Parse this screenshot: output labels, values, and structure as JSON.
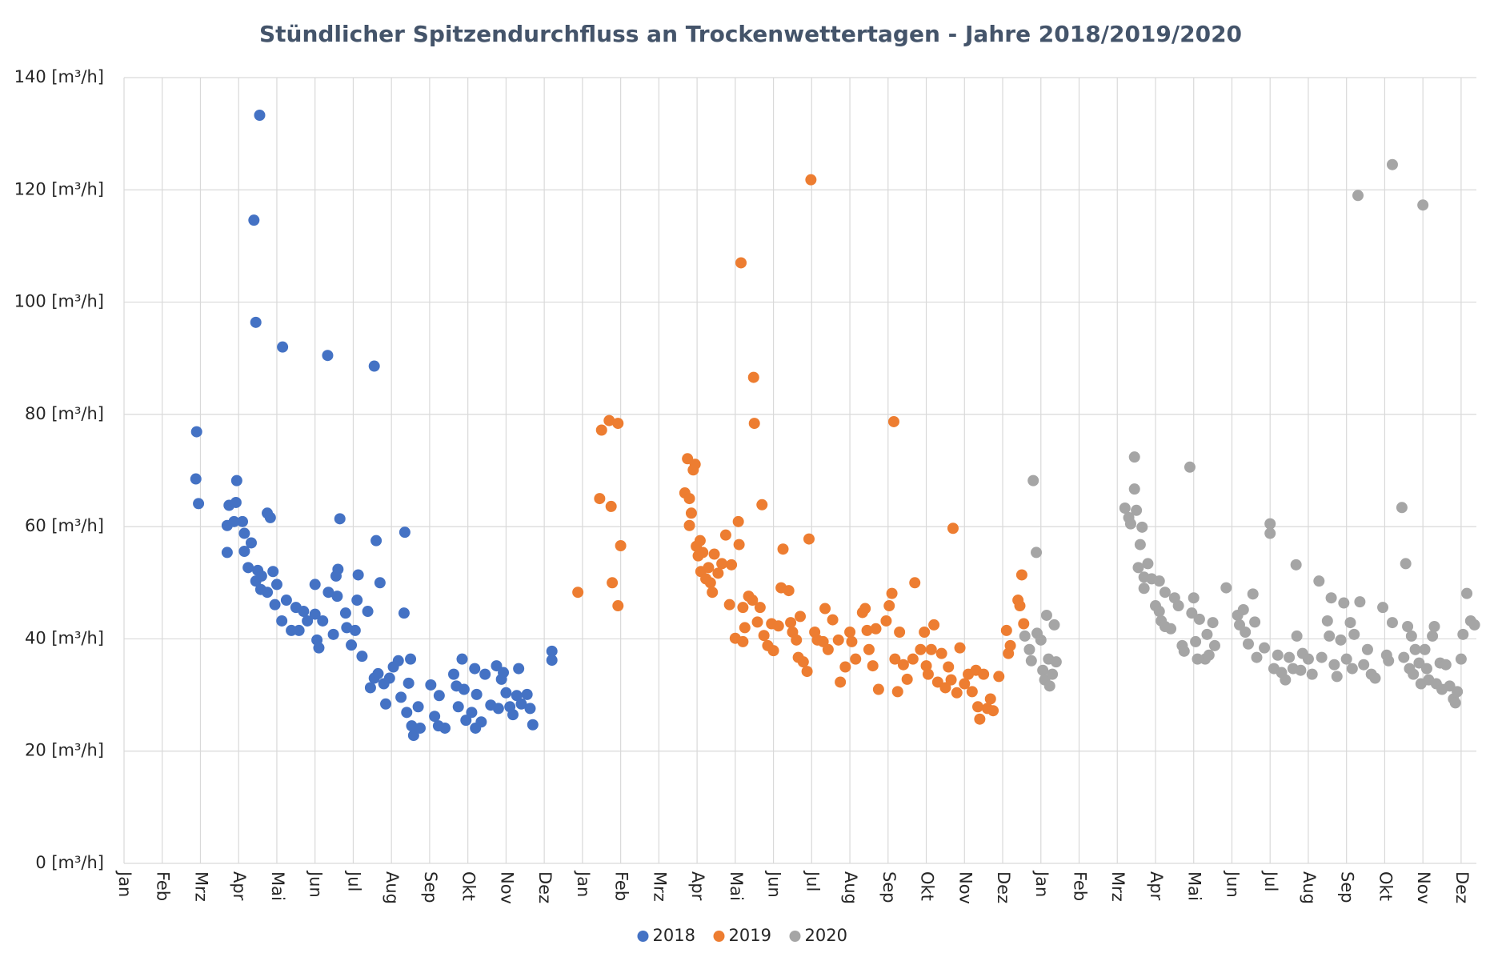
{
  "chart_data": {
    "type": "scatter",
    "title": "Stündlicher Spitzendurchfluss an Trockenwettertagen - Jahre 2018/2019/2020",
    "xlim": [
      0,
      35.4
    ],
    "xticks": [
      {
        "value": 0,
        "label": "Jan"
      },
      {
        "value": 1,
        "label": "Feb"
      },
      {
        "value": 2,
        "label": "Mrz"
      },
      {
        "value": 3,
        "label": "Apr"
      },
      {
        "value": 4,
        "label": "Mai"
      },
      {
        "value": 5,
        "label": "Jun"
      },
      {
        "value": 6,
        "label": "Jul"
      },
      {
        "value": 7,
        "label": "Aug"
      },
      {
        "value": 8,
        "label": "Sep"
      },
      {
        "value": 9,
        "label": "Okt"
      },
      {
        "value": 10,
        "label": "Nov"
      },
      {
        "value": 11,
        "label": "Dez"
      },
      {
        "value": 12,
        "label": "Jan"
      },
      {
        "value": 13,
        "label": "Feb"
      },
      {
        "value": 14,
        "label": "Mrz"
      },
      {
        "value": 15,
        "label": "Apr"
      },
      {
        "value": 16,
        "label": "Mai"
      },
      {
        "value": 17,
        "label": "Jun"
      },
      {
        "value": 18,
        "label": "Jul"
      },
      {
        "value": 19,
        "label": "Aug"
      },
      {
        "value": 20,
        "label": "Sep"
      },
      {
        "value": 21,
        "label": "Okt"
      },
      {
        "value": 22,
        "label": "Nov"
      },
      {
        "value": 23,
        "label": "Dez"
      },
      {
        "value": 24,
        "label": "Jan"
      },
      {
        "value": 25,
        "label": "Feb"
      },
      {
        "value": 26,
        "label": "Mrz"
      },
      {
        "value": 27,
        "label": "Apr"
      },
      {
        "value": 28,
        "label": "Mai"
      },
      {
        "value": 29,
        "label": "Jun"
      },
      {
        "value": 30,
        "label": "Jul"
      },
      {
        "value": 31,
        "label": "Aug"
      },
      {
        "value": 32,
        "label": "Sep"
      },
      {
        "value": 33,
        "label": "Okt"
      },
      {
        "value": 34,
        "label": "Nov"
      },
      {
        "value": 35,
        "label": "Dez"
      }
    ],
    "ylim": [
      0,
      140
    ],
    "yticks": [
      {
        "value": 0,
        "label": "0 [m³/h]"
      },
      {
        "value": 20,
        "label": "20 [m³/h]"
      },
      {
        "value": 40,
        "label": "40 [m³/h]"
      },
      {
        "value": 60,
        "label": "60 [m³/h]"
      },
      {
        "value": 80,
        "label": "80 [m³/h]"
      },
      {
        "value": 100,
        "label": "100 [m³/h]"
      },
      {
        "value": 120,
        "label": "120 [m³/h]"
      },
      {
        "value": 140,
        "label": "140 [m³/h]"
      }
    ],
    "grid": true,
    "legend": "bottom",
    "series": [
      {
        "name": "2018",
        "color": "#4472c4",
        "x": [
          1.9,
          1.88,
          1.95,
          2.7,
          2.7,
          2.75,
          2.88,
          2.93,
          2.95,
          3.1,
          3.15,
          3.15,
          3.25,
          3.33,
          3.4,
          3.45,
          3.55,
          3.5,
          3.45,
          3.58,
          3.6,
          3.75,
          3.83,
          3.75,
          3.9,
          4,
          3.95,
          4.13,
          4.15,
          4.25,
          4.38,
          4.5,
          4.58,
          4.7,
          4.8,
          5,
          5,
          5.05,
          5.1,
          5.2,
          5.33,
          5.35,
          5.48,
          5.55,
          5.6,
          5.65,
          5.58,
          5.8,
          5.83,
          5.95,
          6.05,
          6.13,
          6.1,
          6.23,
          6.38,
          6.55,
          6.6,
          6.7,
          6.45,
          6.55,
          6.65,
          6.8,
          6.85,
          6.95,
          7.05,
          7.18,
          7.25,
          7.35,
          7.33,
          7.45,
          7.5,
          7.4,
          7.53,
          7.58,
          7.7,
          7.75,
          8.03,
          8.13,
          8.25,
          8.23,
          8.4,
          8.63,
          8.7,
          8.75,
          8.85,
          8.9,
          8.95,
          9.1,
          9.18,
          9.23,
          9.2,
          9.35,
          9.45,
          9.6,
          9.75,
          9.8,
          9.88,
          9.93,
          10,
          10.1,
          10.18,
          10.28,
          10.33,
          10.4,
          10.55,
          10.63,
          10.7,
          11.2,
          11.2
        ],
        "values": [
          76.9,
          68.5,
          64.1,
          60.2,
          55.4,
          63.8,
          60.9,
          64.3,
          68.2,
          60.9,
          58.8,
          55.6,
          52.7,
          57.1,
          114.6,
          96.4,
          133.3,
          52.2,
          50.3,
          48.8,
          51.2,
          62.4,
          61.6,
          48.3,
          52,
          49.7,
          46.1,
          43.2,
          92,
          46.9,
          41.5,
          45.6,
          41.5,
          44.9,
          43.2,
          49.7,
          44.4,
          39.8,
          38.4,
          43.2,
          90.5,
          48.3,
          40.8,
          51.2,
          52.4,
          61.4,
          47.6,
          44.6,
          42,
          38.9,
          41.5,
          51.4,
          46.9,
          36.9,
          44.9,
          88.6,
          57.5,
          50,
          31.3,
          33,
          33.8,
          32,
          28.4,
          33,
          35,
          36.1,
          29.6,
          59,
          44.6,
          32.1,
          36.4,
          26.9,
          24.5,
          22.8,
          27.9,
          24.1,
          31.8,
          26.2,
          29.9,
          24.5,
          24.1,
          33.7,
          31.6,
          27.9,
          36.4,
          31,
          25.5,
          26.9,
          34.7,
          30.1,
          24.1,
          25.2,
          33.7,
          28.2,
          35.2,
          27.6,
          32.8,
          34,
          30.4,
          27.9,
          26.5,
          29.9,
          34.7,
          28.4,
          30.1,
          27.6,
          24.7,
          37.8,
          36.2
        ]
      },
      {
        "name": "2019",
        "color": "#ed7d31",
        "x": [
          11.88,
          12.45,
          12.5,
          12.7,
          12.75,
          12.78,
          12.93,
          12.93,
          13,
          14.68,
          14.75,
          14.8,
          14.8,
          14.85,
          14.9,
          14.95,
          14.98,
          15.03,
          15.08,
          15.1,
          15.15,
          15.23,
          15.3,
          15.35,
          15.4,
          15.45,
          15.55,
          15.65,
          15.75,
          15.85,
          15.9,
          16,
          16.08,
          16.1,
          16.15,
          16.2,
          16.2,
          16.25,
          16.35,
          16.45,
          16.48,
          16.5,
          16.58,
          16.65,
          16.7,
          16.75,
          16.85,
          16.95,
          17,
          17.13,
          17.2,
          17.25,
          17.4,
          17.45,
          17.5,
          17.6,
          17.65,
          17.7,
          17.78,
          17.88,
          17.93,
          17.98,
          18.08,
          18.15,
          18.3,
          18.35,
          18.43,
          18.55,
          18.7,
          18.75,
          18.88,
          19,
          19.05,
          19.15,
          19.33,
          19.4,
          19.45,
          19.5,
          19.6,
          19.68,
          19.75,
          19.95,
          20.03,
          20.1,
          20.15,
          20.18,
          20.25,
          20.3,
          20.4,
          20.5,
          20.65,
          20.7,
          20.85,
          20.95,
          21,
          21.05,
          21.13,
          21.2,
          21.3,
          21.4,
          21.5,
          21.58,
          21.65,
          21.7,
          21.8,
          21.88,
          22,
          22.1,
          22.2,
          22.3,
          22.35,
          22.4,
          22.5,
          22.6,
          22.68,
          22.75,
          22.9,
          23.1,
          23.15,
          23.2,
          23.4,
          23.45,
          23.5,
          23.55
        ],
        "values": [
          48.3,
          65,
          77.2,
          78.9,
          63.6,
          50,
          78.4,
          45.9,
          56.6,
          66,
          72.1,
          65,
          60.2,
          62.4,
          70.1,
          71.1,
          56.5,
          54.8,
          57.5,
          52,
          55.4,
          50.7,
          52.7,
          50,
          48.3,
          55.1,
          51.7,
          53.4,
          58.5,
          46.1,
          53.2,
          40.1,
          60.9,
          56.8,
          107,
          45.6,
          39.5,
          42,
          47.6,
          46.9,
          86.6,
          78.4,
          43,
          45.6,
          63.9,
          40.6,
          38.8,
          42.7,
          37.9,
          42.3,
          49.1,
          56,
          48.6,
          42.9,
          41.2,
          39.8,
          36.7,
          44,
          35.9,
          34.2,
          57.8,
          121.8,
          41.2,
          39.8,
          39.5,
          45.4,
          38.1,
          43.4,
          39.8,
          32.3,
          35,
          41.2,
          39.5,
          36.4,
          44.7,
          45.4,
          41.5,
          38.1,
          35.2,
          41.8,
          31,
          43.2,
          45.9,
          48.1,
          78.7,
          36.4,
          30.6,
          41.2,
          35.4,
          32.8,
          36.4,
          50,
          38.1,
          41.2,
          35.2,
          33.7,
          38.1,
          42.5,
          32.3,
          37.4,
          31.3,
          35,
          32.7,
          59.7,
          30.4,
          38.4,
          32,
          33.7,
          30.6,
          34.4,
          27.9,
          25.7,
          33.7,
          27.6,
          29.3,
          27.2,
          33.3,
          41.5,
          37.4,
          38.8,
          46.9,
          45.9,
          51.4,
          42.7
        ]
      },
      {
        "name": "2020",
        "color": "#a5a5a5",
        "x": [
          23.58,
          23.7,
          23.8,
          23.88,
          23.9,
          23.75,
          24,
          24.05,
          24.1,
          24.15,
          24.2,
          24.23,
          24.3,
          24.35,
          24.4,
          26.2,
          26.3,
          26.35,
          26.45,
          26.45,
          26.5,
          26.55,
          26.6,
          26.65,
          26.7,
          26.7,
          26.8,
          26.9,
          27,
          27.1,
          27.15,
          27.25,
          27.1,
          27.25,
          27.4,
          27.5,
          27.6,
          27.7,
          27.75,
          27.9,
          27.95,
          28,
          28.05,
          28.1,
          28.15,
          28.3,
          28.35,
          28.4,
          28.5,
          28.55,
          28.85,
          29.15,
          29.2,
          29.3,
          29.35,
          29.43,
          29.55,
          29.6,
          29.65,
          29.85,
          30,
          30,
          30.1,
          30.2,
          30.3,
          30.4,
          30.5,
          30.6,
          30.68,
          30.7,
          30.8,
          30.85,
          31,
          31.1,
          31.28,
          31.35,
          31.5,
          31.55,
          31.6,
          31.68,
          31.75,
          31.85,
          31.93,
          32,
          32.1,
          32.15,
          32.2,
          32.3,
          32.35,
          32.45,
          32.55,
          32.65,
          32.75,
          32.95,
          33.05,
          33.1,
          33.2,
          33.2,
          33.45,
          33.5,
          33.55,
          33.6,
          33.65,
          33.7,
          33.75,
          33.8,
          33.9,
          33.95,
          34,
          34.05,
          34.1,
          34.15,
          34.25,
          34.3,
          34.35,
          34.45,
          34.5,
          34.6,
          34.7,
          34.8,
          34.85,
          34.9,
          35,
          35.05,
          35.15,
          35.25,
          35.35
        ],
        "values": [
          40.5,
          38.1,
          68.2,
          55.4,
          41,
          36.1,
          39.8,
          34.4,
          32.7,
          44.2,
          36.4,
          31.6,
          33.7,
          42.5,
          35.9,
          63.3,
          61.6,
          60.5,
          72.4,
          66.7,
          62.9,
          52.7,
          56.8,
          59.9,
          51,
          49,
          53.4,
          50.7,
          45.9,
          44.9,
          43.2,
          42.2,
          50.3,
          48.3,
          41.8,
          47.3,
          45.9,
          38.8,
          37.8,
          70.6,
          44.6,
          47.3,
          39.5,
          36.4,
          43.5,
          36.4,
          40.8,
          37.1,
          42.9,
          38.8,
          49.1,
          44.2,
          42.5,
          45.2,
          41.2,
          39.1,
          48,
          43,
          36.7,
          38.4,
          60.5,
          58.8,
          34.7,
          37.1,
          34,
          32.7,
          36.7,
          34.7,
          53.2,
          40.5,
          34.4,
          37.4,
          36.4,
          33.7,
          50.3,
          36.7,
          43.2,
          40.5,
          47.3,
          35.4,
          33.3,
          39.8,
          46.4,
          36.4,
          42.9,
          34.7,
          40.8,
          119,
          46.6,
          35.4,
          38.1,
          33.7,
          33,
          45.6,
          37.1,
          36.1,
          124.5,
          42.9,
          63.4,
          36.7,
          53.4,
          42.2,
          34.7,
          40.5,
          33.7,
          38.1,
          35.7,
          32,
          117.3,
          38.1,
          34.7,
          32.7,
          40.5,
          42.2,
          32,
          35.7,
          31,
          35.4,
          31.6,
          29.3,
          28.6,
          30.6,
          36.4,
          40.8,
          48.1,
          43.2,
          42.5
        ]
      }
    ]
  }
}
